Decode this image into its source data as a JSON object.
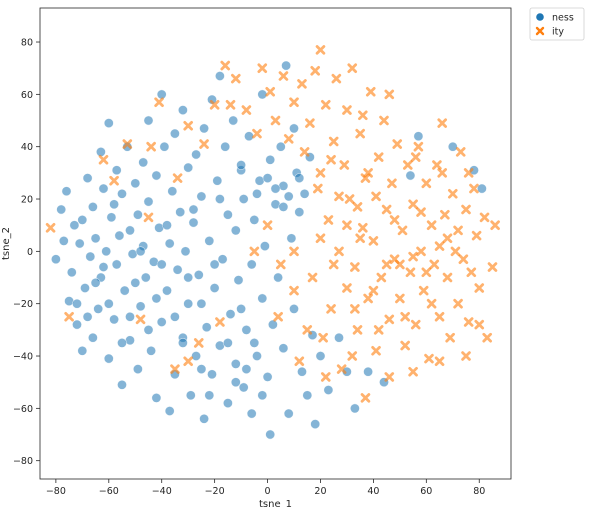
{
  "chart_data": {
    "type": "scatter",
    "xlabel": "tsne_1",
    "ylabel": "tsne_2",
    "xlim": [
      -86,
      92
    ],
    "ylim": [
      -87,
      93
    ],
    "x_ticks": [
      -80,
      -60,
      -40,
      -20,
      0,
      20,
      40,
      60,
      80
    ],
    "y_ticks": [
      -80,
      -60,
      -40,
      -20,
      0,
      20,
      40,
      60,
      80
    ],
    "grid": false,
    "legend_position": "outside-top-right",
    "series": [
      {
        "name": "ness",
        "marker": "circle",
        "color": "#1f77b4",
        "points": [
          [
            -80,
            -3
          ],
          [
            -78,
            16
          ],
          [
            -77,
            4
          ],
          [
            -76,
            23
          ],
          [
            -75,
            -19
          ],
          [
            -74,
            -8
          ],
          [
            -73,
            10
          ],
          [
            -72,
            -28
          ],
          [
            -71,
            3
          ],
          [
            -70,
            -38
          ],
          [
            -70,
            12
          ],
          [
            -69,
            -14
          ],
          [
            -68,
            28
          ],
          [
            -67,
            -2
          ],
          [
            -66,
            -33
          ],
          [
            -66,
            17
          ],
          [
            -65,
            5
          ],
          [
            -64,
            -22
          ],
          [
            -63,
            38
          ],
          [
            -63,
            -10
          ],
          [
            -62,
            24
          ],
          [
            -61,
            0
          ],
          [
            -60,
            -41
          ],
          [
            -60,
            49
          ],
          [
            -59,
            13
          ],
          [
            -58,
            -26
          ],
          [
            -57,
            31
          ],
          [
            -57,
            -5
          ],
          [
            -56,
            6
          ],
          [
            -55,
            -51
          ],
          [
            -55,
            22
          ],
          [
            -54,
            -15
          ],
          [
            -53,
            40
          ],
          [
            -52,
            -34
          ],
          [
            -52,
            8
          ],
          [
            -51,
            -1
          ],
          [
            -50,
            26
          ],
          [
            -49,
            -45
          ],
          [
            -49,
            14
          ],
          [
            -48,
            -21
          ],
          [
            -47,
            34
          ],
          [
            -47,
            2
          ],
          [
            -46,
            -10
          ],
          [
            -45,
            50
          ],
          [
            -45,
            19
          ],
          [
            -44,
            -38
          ],
          [
            -43,
            -4
          ],
          [
            -42,
            29
          ],
          [
            -42,
            -56
          ],
          [
            -41,
            9
          ],
          [
            -40,
            -27
          ],
          [
            -40,
            60
          ],
          [
            -39,
            40
          ],
          [
            -38,
            -15
          ],
          [
            -37,
            3
          ],
          [
            -37,
            -61
          ],
          [
            -36,
            23
          ],
          [
            -35,
            -47
          ],
          [
            -35,
            45
          ],
          [
            -34,
            -7
          ],
          [
            -33,
            15
          ],
          [
            -32,
            -33
          ],
          [
            -32,
            54
          ],
          [
            -31,
            0
          ],
          [
            -30,
            -20
          ],
          [
            -30,
            32
          ],
          [
            -29,
            -55
          ],
          [
            -28,
            11
          ],
          [
            -27,
            -40
          ],
          [
            -27,
            37
          ],
          [
            -26,
            -9
          ],
          [
            -25,
            21
          ],
          [
            -24,
            -64
          ],
          [
            -24,
            47
          ],
          [
            -23,
            -29
          ],
          [
            -22,
            4
          ],
          [
            -21,
            58
          ],
          [
            -21,
            -47
          ],
          [
            -20,
            -14
          ],
          [
            -19,
            27
          ],
          [
            -18,
            -36
          ],
          [
            -18,
            67
          ],
          [
            -17,
            -3
          ],
          [
            -16,
            40
          ],
          [
            -15,
            -58
          ],
          [
            -15,
            14
          ],
          [
            -14,
            -24
          ],
          [
            -13,
            50
          ],
          [
            -12,
            -43
          ],
          [
            -12,
            8
          ],
          [
            -11,
            -11
          ],
          [
            -10,
            31
          ],
          [
            -9,
            -52
          ],
          [
            -9,
            20
          ],
          [
            -8,
            -30
          ],
          [
            -7,
            44
          ],
          [
            -6,
            -5
          ],
          [
            -6,
            -62
          ],
          [
            -5,
            12
          ],
          [
            -4,
            -40
          ],
          [
            -3,
            27
          ],
          [
            -2,
            -18
          ],
          [
            -2,
            60
          ],
          [
            -1,
            2
          ],
          [
            0,
            -48
          ],
          [
            1,
            35
          ],
          [
            1,
            -70
          ],
          [
            2,
            -28
          ],
          [
            3,
            18
          ],
          [
            4,
            -10
          ],
          [
            5,
            40
          ],
          [
            6,
            -37
          ],
          [
            6,
            25
          ],
          [
            7,
            71
          ],
          [
            8,
            -62
          ],
          [
            9,
            5
          ],
          [
            10,
            47
          ],
          [
            10,
            -22
          ],
          [
            11,
            30
          ],
          [
            12,
            15
          ],
          [
            13,
            -46
          ],
          [
            14,
            22
          ],
          [
            15,
            -55
          ],
          [
            16,
            36
          ],
          [
            17,
            -32
          ],
          [
            18,
            -66
          ],
          [
            20,
            -40
          ],
          [
            23,
            -53
          ],
          [
            27,
            -33
          ],
          [
            30,
            -46
          ],
          [
            33,
            -60
          ],
          [
            38,
            -46
          ],
          [
            44,
            -50
          ],
          [
            54,
            29
          ],
          [
            57,
            44
          ],
          [
            70,
            40
          ],
          [
            78,
            31
          ],
          [
            81,
            24
          ],
          [
            -18,
            20
          ],
          [
            -10,
            33
          ],
          [
            -4,
            22
          ],
          [
            3,
            24
          ],
          [
            8,
            21
          ],
          [
            12,
            28
          ],
          [
            6,
            17
          ],
          [
            0,
            28
          ],
          [
            -25,
            -20
          ],
          [
            -35,
            -25
          ],
          [
            -45,
            -30
          ],
          [
            -55,
            -35
          ],
          [
            -60,
            -20
          ],
          [
            -65,
            -12
          ],
          [
            -50,
            -12
          ],
          [
            -40,
            -5
          ],
          [
            -30,
            -10
          ],
          [
            -20,
            -5
          ],
          [
            -10,
            -22
          ],
          [
            -15,
            -35
          ],
          [
            -25,
            -45
          ],
          [
            -5,
            -35
          ],
          [
            -38,
            10
          ],
          [
            -28,
            16
          ],
          [
            -48,
            0
          ],
          [
            -58,
            18
          ],
          [
            -68,
            -25
          ],
          [
            -72,
            -20
          ],
          [
            -62,
            -6
          ],
          [
            -52,
            -25
          ],
          [
            -42,
            -18
          ],
          [
            -32,
            -35
          ],
          [
            -22,
            -55
          ],
          [
            -12,
            -50
          ],
          [
            -2,
            -55
          ],
          [
            -8,
            -45
          ]
        ]
      },
      {
        "name": "ity",
        "marker": "x",
        "color": "#ff7f0e",
        "points": [
          [
            -82,
            9
          ],
          [
            -75,
            -25
          ],
          [
            -62,
            35
          ],
          [
            -53,
            41
          ],
          [
            -48,
            -26
          ],
          [
            -45,
            13
          ],
          [
            -41,
            57
          ],
          [
            -35,
            -45
          ],
          [
            -30,
            48
          ],
          [
            -26,
            -35
          ],
          [
            -20,
            56
          ],
          [
            -16,
            71
          ],
          [
            -12,
            66
          ],
          [
            -8,
            54
          ],
          [
            -4,
            45
          ],
          [
            -2,
            70
          ],
          [
            1,
            61
          ],
          [
            3,
            50
          ],
          [
            4,
            -25
          ],
          [
            6,
            67
          ],
          [
            8,
            43
          ],
          [
            10,
            57
          ],
          [
            12,
            -42
          ],
          [
            13,
            64
          ],
          [
            14,
            38
          ],
          [
            16,
            49
          ],
          [
            17,
            -10
          ],
          [
            18,
            69
          ],
          [
            19,
            24
          ],
          [
            20,
            77
          ],
          [
            21,
            -33
          ],
          [
            22,
            56
          ],
          [
            23,
            12
          ],
          [
            24,
            -22
          ],
          [
            25,
            42
          ],
          [
            26,
            66
          ],
          [
            27,
            0
          ],
          [
            28,
            -45
          ],
          [
            29,
            33
          ],
          [
            30,
            54
          ],
          [
            30,
            -14
          ],
          [
            31,
            20
          ],
          [
            32,
            70
          ],
          [
            33,
            -6
          ],
          [
            34,
            -30
          ],
          [
            35,
            45
          ],
          [
            36,
            9
          ],
          [
            37,
            -56
          ],
          [
            37,
            28
          ],
          [
            38,
            -18
          ],
          [
            39,
            61
          ],
          [
            40,
            4
          ],
          [
            41,
            -38
          ],
          [
            42,
            36
          ],
          [
            43,
            -10
          ],
          [
            44,
            50
          ],
          [
            45,
            16
          ],
          [
            46,
            -26
          ],
          [
            46,
            -48
          ],
          [
            47,
            26
          ],
          [
            48,
            -3
          ],
          [
            49,
            41
          ],
          [
            50,
            -18
          ],
          [
            51,
            8
          ],
          [
            52,
            -36
          ],
          [
            53,
            33
          ],
          [
            54,
            -8
          ],
          [
            55,
            18
          ],
          [
            56,
            -28
          ],
          [
            57,
            40
          ],
          [
            58,
            0
          ],
          [
            59,
            -15
          ],
          [
            60,
            26
          ],
          [
            61,
            -41
          ],
          [
            62,
            10
          ],
          [
            63,
            -5
          ],
          [
            64,
            33
          ],
          [
            65,
            -25
          ],
          [
            66,
            49
          ],
          [
            67,
            14
          ],
          [
            68,
            -10
          ],
          [
            69,
            -33
          ],
          [
            70,
            22
          ],
          [
            71,
            0
          ],
          [
            72,
            -20
          ],
          [
            73,
            38
          ],
          [
            74,
            -3
          ],
          [
            75,
            16
          ],
          [
            76,
            -27
          ],
          [
            77,
            -8
          ],
          [
            78,
            24
          ],
          [
            79,
            6
          ],
          [
            80,
            -14
          ],
          [
            82,
            13
          ],
          [
            83,
            -33
          ],
          [
            85,
            -6
          ],
          [
            86,
            10
          ],
          [
            27,
            21
          ],
          [
            34,
            17
          ],
          [
            41,
            21
          ],
          [
            20,
            30
          ],
          [
            25,
            -5
          ],
          [
            33,
            -22
          ],
          [
            40,
            -15
          ],
          [
            50,
            -5
          ],
          [
            55,
            -2
          ],
          [
            60,
            -8
          ],
          [
            65,
            2
          ],
          [
            45,
            -5
          ],
          [
            35,
            5
          ],
          [
            30,
            10
          ],
          [
            38,
            30
          ],
          [
            48,
            12
          ],
          [
            58,
            15
          ],
          [
            62,
            -20
          ],
          [
            68,
            5
          ],
          [
            72,
            8
          ],
          [
            52,
            -25
          ],
          [
            42,
            -30
          ],
          [
            32,
            -40
          ],
          [
            22,
            -48
          ],
          [
            15,
            -30
          ],
          [
            10,
            -15
          ],
          [
            5,
            -5
          ],
          [
            0,
            10
          ],
          [
            -5,
            0
          ],
          [
            10,
            0
          ],
          [
            20,
            5
          ],
          [
            24,
            35
          ],
          [
            36,
            52
          ],
          [
            46,
            60
          ],
          [
            56,
            36
          ],
          [
            66,
            30
          ],
          [
            76,
            30
          ],
          [
            80,
            -28
          ],
          [
            75,
            -40
          ],
          [
            65,
            -42
          ],
          [
            55,
            -46
          ],
          [
            -14,
            56
          ],
          [
            -24,
            41
          ],
          [
            -34,
            28
          ],
          [
            -44,
            40
          ],
          [
            -58,
            27
          ],
          [
            -30,
            -42
          ],
          [
            -18,
            -27
          ]
        ]
      }
    ]
  }
}
